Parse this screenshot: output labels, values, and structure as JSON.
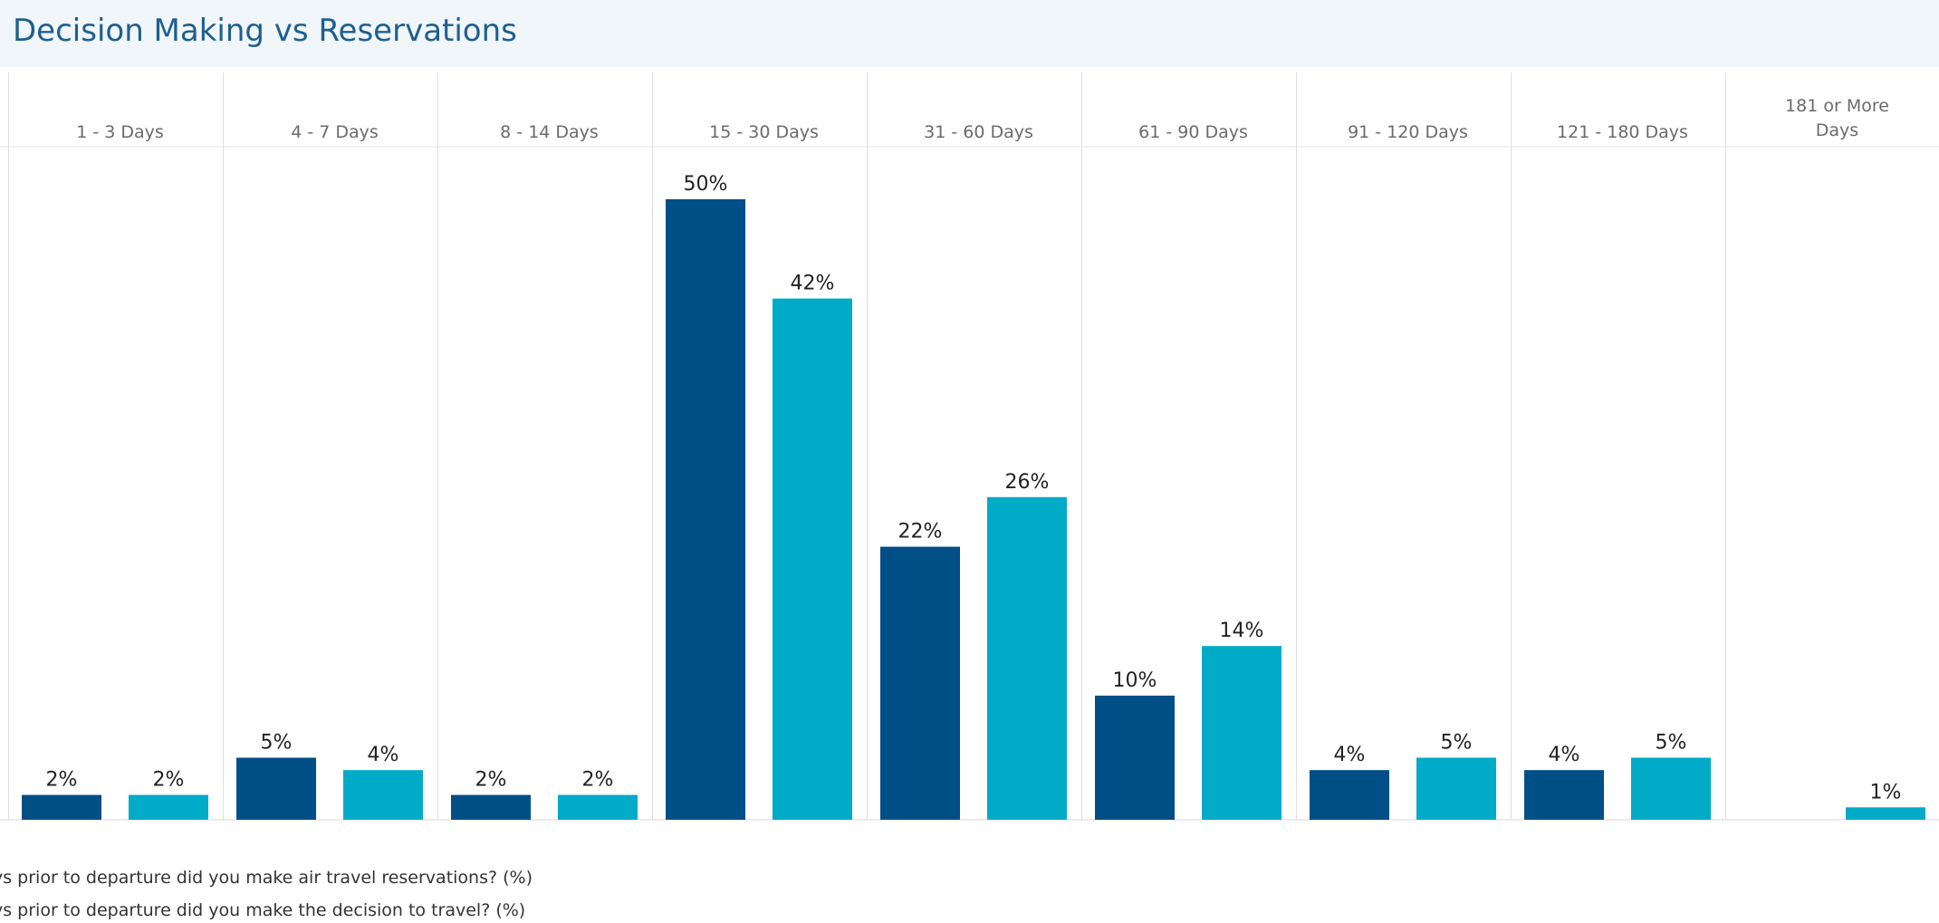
{
  "chart_data": {
    "type": "bar",
    "title": "Decision Making vs Reservations",
    "categories": [
      "1 - 3 Days",
      "4 - 7 Days",
      "8 - 14 Days",
      "15 - 30 Days",
      "31 - 60 Days",
      "61 - 90 Days",
      "91 - 120 Days",
      "121 - 180 Days",
      "181 or More Days"
    ],
    "series": [
      {
        "name": "ys prior to departure did you make air travel reservations?  (%)",
        "values": [
          2,
          5,
          2,
          50,
          22,
          10,
          4,
          4,
          null
        ],
        "labels": [
          "2%",
          "5%",
          "2%",
          "50%",
          "22%",
          "10%",
          "4%",
          "4%",
          ""
        ],
        "color": "#004f86"
      },
      {
        "name": "ys prior to departure did you make the decision to travel?  (%)",
        "values": [
          2,
          4,
          2,
          42,
          26,
          14,
          5,
          5,
          1
        ],
        "labels": [
          "2%",
          "4%",
          "2%",
          "42%",
          "26%",
          "14%",
          "5%",
          "5%",
          "1%"
        ],
        "color": "#00abc8"
      }
    ],
    "ylim": [
      0,
      50
    ],
    "grid": "vertical separators",
    "legend": "bottom-left"
  }
}
